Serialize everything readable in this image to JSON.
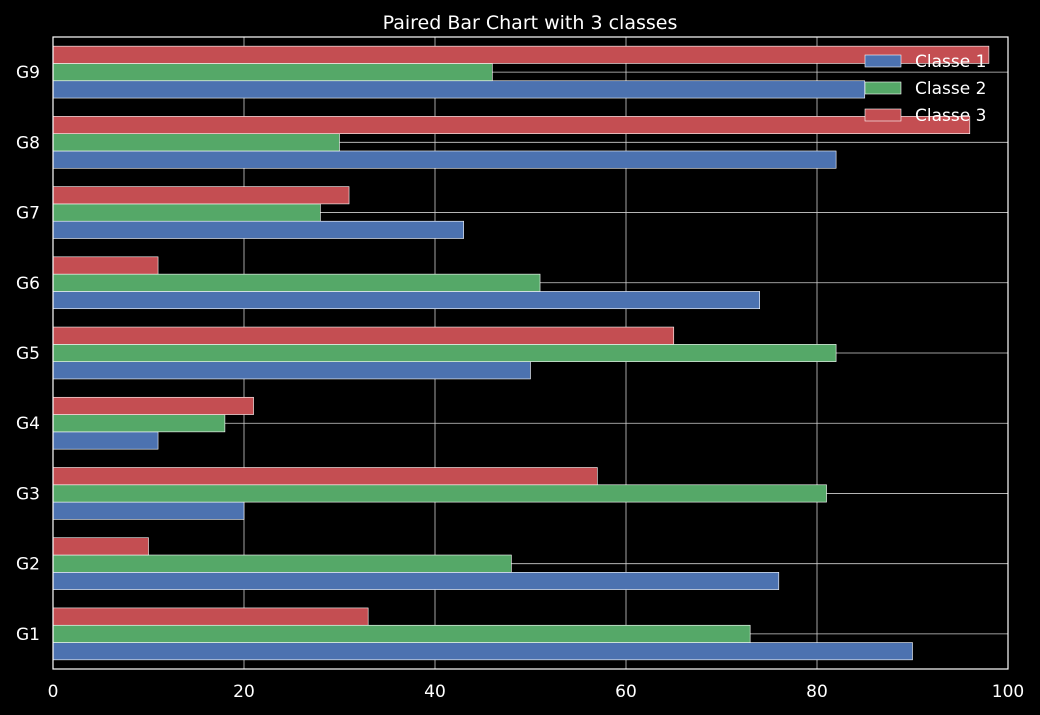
{
  "chart_data": {
    "type": "bar",
    "orientation": "horizontal",
    "title": "Paired Bar Chart with 3 classes",
    "xlabel": "",
    "ylabel": "",
    "categories": [
      "G1",
      "G2",
      "G3",
      "G4",
      "G5",
      "G6",
      "G7",
      "G8",
      "G9"
    ],
    "xlim": [
      0,
      100
    ],
    "x_ticks": [
      0,
      20,
      40,
      60,
      80,
      100
    ],
    "grid": true,
    "legend_position": "top-right",
    "series": [
      {
        "name": "Classe 1",
        "color": "#4c72b0",
        "values": [
          90,
          76,
          20,
          11,
          50,
          74,
          43,
          82,
          85
        ]
      },
      {
        "name": "Classe 2",
        "color": "#55a868",
        "values": [
          73,
          48,
          81,
          18,
          82,
          51,
          28,
          30,
          46
        ]
      },
      {
        "name": "Classe 3",
        "color": "#c44e52",
        "values": [
          33,
          10,
          57,
          21,
          65,
          11,
          31,
          96,
          98
        ]
      }
    ]
  }
}
